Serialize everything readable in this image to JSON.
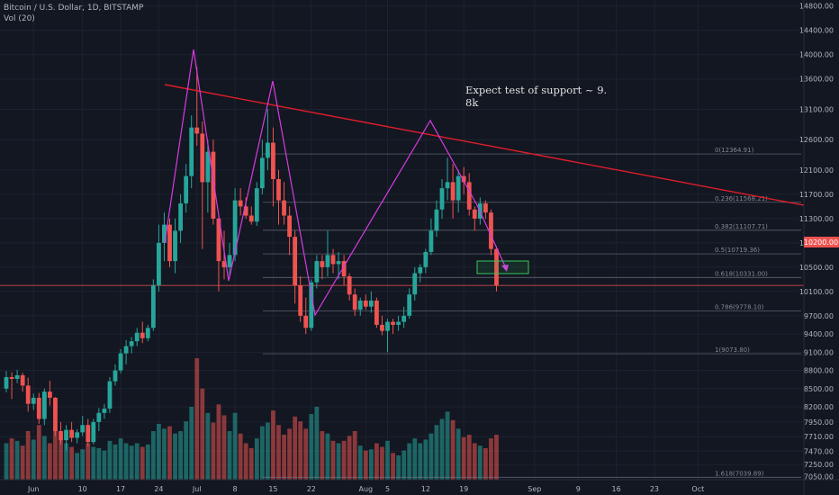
{
  "header": {
    "title": "Bitcoin / U.S. Dollar, 1D, BITSTAMP",
    "volume_label": "Vol (20)"
  },
  "colors": {
    "background": "#131722",
    "up": "#26a69a",
    "down": "#ef5350",
    "trendline": "#e11d2a",
    "pattern": "#d63be0",
    "target_box": "#34c759",
    "price_badge": "#ef5350"
  },
  "chart_data": {
    "type": "candlestick",
    "y_axis": {
      "range": [
        7000,
        14900
      ],
      "ticks": [
        "14800.00",
        "14400.00",
        "14000.00",
        "13600.00",
        "13100.00",
        "12600.00",
        "12100.00",
        "11700.00",
        "11300.00",
        "10900.00",
        "10500.00",
        "10100.00",
        "9700.00",
        "9400.00",
        "9100.00",
        "8800.00",
        "8500.00",
        "8200.00",
        "7950.00",
        "7710.00",
        "7470.00",
        "7250.00",
        "7050.00"
      ],
      "current_price": "10200.00"
    },
    "x_axis": {
      "start_date": "2019-05-27",
      "ticks": [
        {
          "label": "Jun",
          "date": "2019-06-01"
        },
        {
          "label": "10",
          "date": "2019-06-10"
        },
        {
          "label": "17",
          "date": "2019-06-17"
        },
        {
          "label": "24",
          "date": "2019-06-24"
        },
        {
          "label": "Jul",
          "date": "2019-07-01"
        },
        {
          "label": "8",
          "date": "2019-07-08"
        },
        {
          "label": "15",
          "date": "2019-07-15"
        },
        {
          "label": "22",
          "date": "2019-07-22"
        },
        {
          "label": "Aug",
          "date": "2019-08-01"
        },
        {
          "label": "5",
          "date": "2019-08-05"
        },
        {
          "label": "12",
          "date": "2019-08-12"
        },
        {
          "label": "19",
          "date": "2019-08-19"
        },
        {
          "label": "Sep",
          "date": "2019-09-01"
        },
        {
          "label": "9",
          "date": "2019-09-09"
        },
        {
          "label": "16",
          "date": "2019-09-16"
        },
        {
          "label": "23",
          "date": "2019-09-23"
        },
        {
          "label": "Oct",
          "date": "2019-10-01"
        }
      ]
    },
    "candles": [
      {
        "o": 8500,
        "h": 8790,
        "l": 8440,
        "c": 8690,
        "v": 0.3
      },
      {
        "o": 8690,
        "h": 8770,
        "l": 8330,
        "c": 8660,
        "v": 0.34
      },
      {
        "o": 8660,
        "h": 8810,
        "l": 8590,
        "c": 8720,
        "v": 0.32
      },
      {
        "o": 8720,
        "h": 8760,
        "l": 8450,
        "c": 8550,
        "v": 0.28
      },
      {
        "o": 8550,
        "h": 8680,
        "l": 8120,
        "c": 8250,
        "v": 0.4
      },
      {
        "o": 8250,
        "h": 8420,
        "l": 8150,
        "c": 8350,
        "v": 0.33
      },
      {
        "o": 8350,
        "h": 8430,
        "l": 7920,
        "c": 8000,
        "v": 0.45
      },
      {
        "o": 8000,
        "h": 8500,
        "l": 7900,
        "c": 8450,
        "v": 0.36
      },
      {
        "o": 8450,
        "h": 8630,
        "l": 8220,
        "c": 8350,
        "v": 0.3
      },
      {
        "o": 8350,
        "h": 8360,
        "l": 7720,
        "c": 7800,
        "v": 0.41
      },
      {
        "o": 7800,
        "h": 7950,
        "l": 7580,
        "c": 7650,
        "v": 0.35
      },
      {
        "o": 7650,
        "h": 7900,
        "l": 7480,
        "c": 7820,
        "v": 0.3
      },
      {
        "o": 7820,
        "h": 7950,
        "l": 7620,
        "c": 7690,
        "v": 0.27
      },
      {
        "o": 7690,
        "h": 7830,
        "l": 7600,
        "c": 7780,
        "v": 0.22
      },
      {
        "o": 7780,
        "h": 8050,
        "l": 7720,
        "c": 7900,
        "v": 0.25
      },
      {
        "o": 7900,
        "h": 8000,
        "l": 7550,
        "c": 7620,
        "v": 0.3
      },
      {
        "o": 7620,
        "h": 8000,
        "l": 7580,
        "c": 7950,
        "v": 0.27
      },
      {
        "o": 7950,
        "h": 8180,
        "l": 7800,
        "c": 8100,
        "v": 0.26
      },
      {
        "o": 8100,
        "h": 8250,
        "l": 8000,
        "c": 8170,
        "v": 0.24
      },
      {
        "o": 8170,
        "h": 8690,
        "l": 8100,
        "c": 8620,
        "v": 0.32
      },
      {
        "o": 8620,
        "h": 8900,
        "l": 8550,
        "c": 8800,
        "v": 0.29
      },
      {
        "o": 8800,
        "h": 9150,
        "l": 8750,
        "c": 9080,
        "v": 0.34
      },
      {
        "o": 9080,
        "h": 9300,
        "l": 8900,
        "c": 9200,
        "v": 0.3
      },
      {
        "o": 9200,
        "h": 9350,
        "l": 9080,
        "c": 9280,
        "v": 0.28
      },
      {
        "o": 9280,
        "h": 9500,
        "l": 9200,
        "c": 9420,
        "v": 0.3
      },
      {
        "o": 9420,
        "h": 9600,
        "l": 9250,
        "c": 9330,
        "v": 0.27
      },
      {
        "o": 9330,
        "h": 9550,
        "l": 9280,
        "c": 9500,
        "v": 0.29
      },
      {
        "o": 9500,
        "h": 10300,
        "l": 9450,
        "c": 10200,
        "v": 0.4
      },
      {
        "o": 10200,
        "h": 11200,
        "l": 10100,
        "c": 10900,
        "v": 0.46
      },
      {
        "o": 10900,
        "h": 11400,
        "l": 10600,
        "c": 11200,
        "v": 0.42
      },
      {
        "o": 11200,
        "h": 11300,
        "l": 10500,
        "c": 10600,
        "v": 0.44
      },
      {
        "o": 10600,
        "h": 11300,
        "l": 10400,
        "c": 11100,
        "v": 0.38
      },
      {
        "o": 11100,
        "h": 11700,
        "l": 10900,
        "c": 11550,
        "v": 0.4
      },
      {
        "o": 11550,
        "h": 12200,
        "l": 11400,
        "c": 12000,
        "v": 0.48
      },
      {
        "o": 12000,
        "h": 13000,
        "l": 11800,
        "c": 12800,
        "v": 0.6
      },
      {
        "o": 12800,
        "h": 13800,
        "l": 12500,
        "c": 12700,
        "v": 1.0
      },
      {
        "o": 12700,
        "h": 12900,
        "l": 10800,
        "c": 11900,
        "v": 0.75
      },
      {
        "o": 11900,
        "h": 12600,
        "l": 11400,
        "c": 12400,
        "v": 0.55
      },
      {
        "o": 12400,
        "h": 12600,
        "l": 11200,
        "c": 11300,
        "v": 0.47
      },
      {
        "o": 11300,
        "h": 11350,
        "l": 10100,
        "c": 10600,
        "v": 0.62
      },
      {
        "o": 10600,
        "h": 11100,
        "l": 10300,
        "c": 10500,
        "v": 0.53
      },
      {
        "o": 10500,
        "h": 10900,
        "l": 10350,
        "c": 10700,
        "v": 0.4
      },
      {
        "o": 10700,
        "h": 11800,
        "l": 10600,
        "c": 11600,
        "v": 0.55
      },
      {
        "o": 11600,
        "h": 11800,
        "l": 11350,
        "c": 11500,
        "v": 0.38
      },
      {
        "o": 11500,
        "h": 11650,
        "l": 11300,
        "c": 11350,
        "v": 0.3
      },
      {
        "o": 11350,
        "h": 11500,
        "l": 11200,
        "c": 11250,
        "v": 0.26
      },
      {
        "o": 11250,
        "h": 11900,
        "l": 11180,
        "c": 11800,
        "v": 0.34
      },
      {
        "o": 11800,
        "h": 12600,
        "l": 11700,
        "c": 12300,
        "v": 0.44
      },
      {
        "o": 12300,
        "h": 13100,
        "l": 12100,
        "c": 12550,
        "v": 0.47
      },
      {
        "o": 12550,
        "h": 12800,
        "l": 11500,
        "c": 11950,
        "v": 0.57
      },
      {
        "o": 11950,
        "h": 12100,
        "l": 11200,
        "c": 11600,
        "v": 0.45
      },
      {
        "o": 11600,
        "h": 11900,
        "l": 11200,
        "c": 11350,
        "v": 0.37
      },
      {
        "o": 11350,
        "h": 11500,
        "l": 10700,
        "c": 11000,
        "v": 0.42
      },
      {
        "o": 11000,
        "h": 11100,
        "l": 9900,
        "c": 10200,
        "v": 0.52
      },
      {
        "o": 10200,
        "h": 10350,
        "l": 9600,
        "c": 9700,
        "v": 0.48
      },
      {
        "o": 9700,
        "h": 10000,
        "l": 9400,
        "c": 9500,
        "v": 0.42
      },
      {
        "o": 9500,
        "h": 10300,
        "l": 9450,
        "c": 10250,
        "v": 0.54
      },
      {
        "o": 10250,
        "h": 10700,
        "l": 10150,
        "c": 10600,
        "v": 0.6
      },
      {
        "o": 10600,
        "h": 10700,
        "l": 10300,
        "c": 10500,
        "v": 0.4
      },
      {
        "o": 10500,
        "h": 11100,
        "l": 10350,
        "c": 10700,
        "v": 0.38
      },
      {
        "o": 10700,
        "h": 10800,
        "l": 10400,
        "c": 10550,
        "v": 0.32
      },
      {
        "o": 10550,
        "h": 10750,
        "l": 10300,
        "c": 10600,
        "v": 0.3
      },
      {
        "o": 10600,
        "h": 10700,
        "l": 10200,
        "c": 10350,
        "v": 0.32
      },
      {
        "o": 10350,
        "h": 10400,
        "l": 9950,
        "c": 10050,
        "v": 0.36
      },
      {
        "o": 10050,
        "h": 10150,
        "l": 9700,
        "c": 9800,
        "v": 0.4
      },
      {
        "o": 9800,
        "h": 10000,
        "l": 9700,
        "c": 9950,
        "v": 0.28
      },
      {
        "o": 9950,
        "h": 10050,
        "l": 9800,
        "c": 9850,
        "v": 0.24
      },
      {
        "o": 9850,
        "h": 10100,
        "l": 9750,
        "c": 9950,
        "v": 0.25
      },
      {
        "o": 9950,
        "h": 10000,
        "l": 9500,
        "c": 9550,
        "v": 0.3
      },
      {
        "o": 9550,
        "h": 9700,
        "l": 9380,
        "c": 9450,
        "v": 0.27
      },
      {
        "o": 9450,
        "h": 9650,
        "l": 9100,
        "c": 9600,
        "v": 0.32
      },
      {
        "o": 9600,
        "h": 9650,
        "l": 9400,
        "c": 9550,
        "v": 0.22
      },
      {
        "o": 9550,
        "h": 9700,
        "l": 9450,
        "c": 9600,
        "v": 0.2
      },
      {
        "o": 9600,
        "h": 9850,
        "l": 9500,
        "c": 9700,
        "v": 0.24
      },
      {
        "o": 9700,
        "h": 10150,
        "l": 9650,
        "c": 10050,
        "v": 0.3
      },
      {
        "o": 10050,
        "h": 10500,
        "l": 9950,
        "c": 10400,
        "v": 0.34
      },
      {
        "o": 10400,
        "h": 10550,
        "l": 10250,
        "c": 10500,
        "v": 0.3
      },
      {
        "o": 10500,
        "h": 10800,
        "l": 10400,
        "c": 10750,
        "v": 0.33
      },
      {
        "o": 10750,
        "h": 11300,
        "l": 10700,
        "c": 11100,
        "v": 0.38
      },
      {
        "o": 11100,
        "h": 11600,
        "l": 11000,
        "c": 11450,
        "v": 0.45
      },
      {
        "o": 11450,
        "h": 11950,
        "l": 11300,
        "c": 11800,
        "v": 0.5
      },
      {
        "o": 11800,
        "h": 12300,
        "l": 11600,
        "c": 11900,
        "v": 0.56
      },
      {
        "o": 11900,
        "h": 12200,
        "l": 11300,
        "c": 11600,
        "v": 0.49
      },
      {
        "o": 11600,
        "h": 12100,
        "l": 11400,
        "c": 12000,
        "v": 0.42
      },
      {
        "o": 12000,
        "h": 12150,
        "l": 11700,
        "c": 11900,
        "v": 0.35
      },
      {
        "o": 11900,
        "h": 12050,
        "l": 11350,
        "c": 11450,
        "v": 0.37
      },
      {
        "o": 11450,
        "h": 11500,
        "l": 11100,
        "c": 11300,
        "v": 0.3
      },
      {
        "o": 11300,
        "h": 11650,
        "l": 11200,
        "c": 11550,
        "v": 0.28
      },
      {
        "o": 11550,
        "h": 11600,
        "l": 11300,
        "c": 11400,
        "v": 0.26
      },
      {
        "o": 11400,
        "h": 11450,
        "l": 10700,
        "c": 10800,
        "v": 0.34
      },
      {
        "o": 10800,
        "h": 10850,
        "l": 10100,
        "c": 10200,
        "v": 0.37
      }
    ],
    "fib_levels": [
      {
        "ratio": "0",
        "price": 12364.91,
        "label": "0(12364.91)"
      },
      {
        "ratio": "0.236",
        "price": 11568.21,
        "label": "0.236(11568.21)"
      },
      {
        "ratio": "0.382",
        "price": 11107.71,
        "label": "0.382(11107.71)"
      },
      {
        "ratio": "0.5",
        "price": 10719.36,
        "label": "0.5(10719.36)"
      },
      {
        "ratio": "0.618",
        "price": 10331.0,
        "label": "0.618(10331.00)"
      },
      {
        "ratio": "0.786",
        "price": 9778.1,
        "label": "0.786(9778.10)"
      },
      {
        "ratio": "1",
        "price": 9073.8,
        "label": "1(9073.80)"
      },
      {
        "ratio": "1.618",
        "price": 7039.89,
        "label": "1.618(7039.89)"
      }
    ],
    "annotation": [
      "Expect test of support ~ 9.",
      "8k"
    ]
  }
}
